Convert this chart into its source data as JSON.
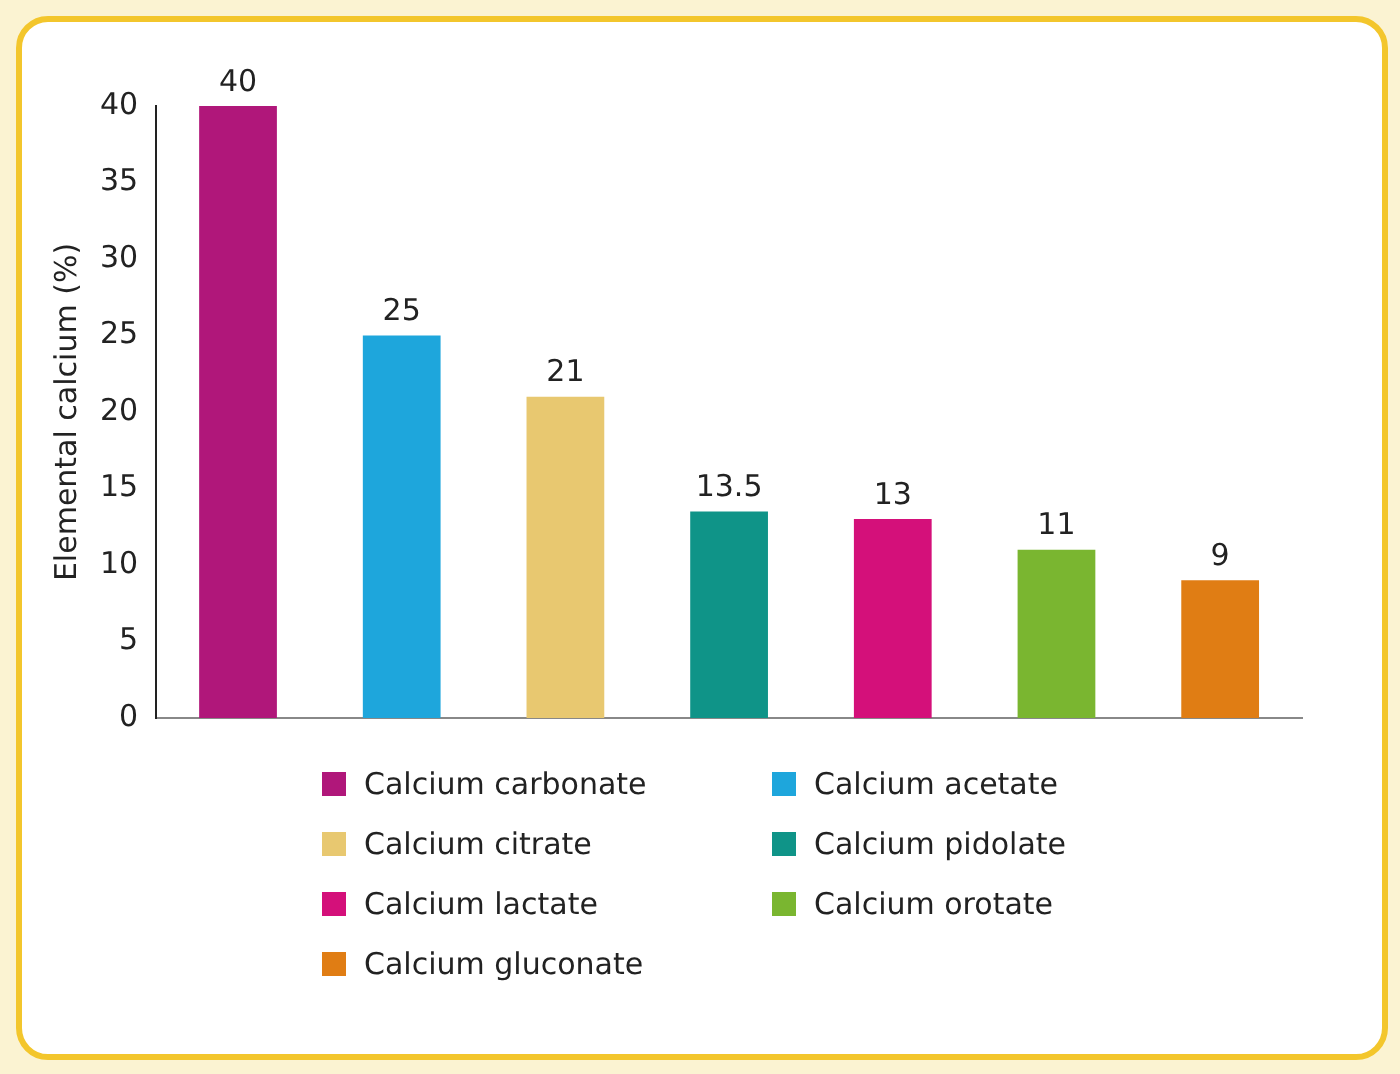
{
  "chart_data": {
    "type": "bar",
    "ylabel": "Elemental calcium (%)",
    "categories": [
      null,
      null,
      null,
      null,
      null,
      null,
      null
    ],
    "series": [
      {
        "name": "Calcium carbonate",
        "color": "#b0177a",
        "values": [
          40,
          null,
          null,
          null,
          null,
          null,
          null
        ]
      },
      {
        "name": "Calcium acetate",
        "color": "#1ea6dc",
        "values": [
          null,
          25,
          null,
          null,
          null,
          null,
          null
        ]
      },
      {
        "name": "Calcium citrate",
        "color": "#e8c870",
        "values": [
          null,
          null,
          21,
          null,
          null,
          null,
          null
        ]
      },
      {
        "name": "Calcium pidolate",
        "color": "#0f9488",
        "values": [
          null,
          null,
          null,
          13.5,
          null,
          null,
          null
        ]
      },
      {
        "name": "Calcium lactate",
        "color": "#d4107a",
        "values": [
          null,
          null,
          null,
          null,
          13,
          null,
          null
        ]
      },
      {
        "name": "Calcium orotate",
        "color": "#7ab630",
        "values": [
          null,
          null,
          null,
          null,
          null,
          11,
          null
        ]
      },
      {
        "name": "Calcium gluconate",
        "color": "#e07d14",
        "values": [
          null,
          null,
          null,
          null,
          null,
          null,
          9
        ]
      }
    ],
    "ylim": [
      0,
      40
    ],
    "yticks": [
      0,
      5,
      10,
      15,
      20,
      25,
      30,
      35,
      40
    ],
    "grid": false,
    "data_labels": true,
    "legend": "bottom"
  }
}
